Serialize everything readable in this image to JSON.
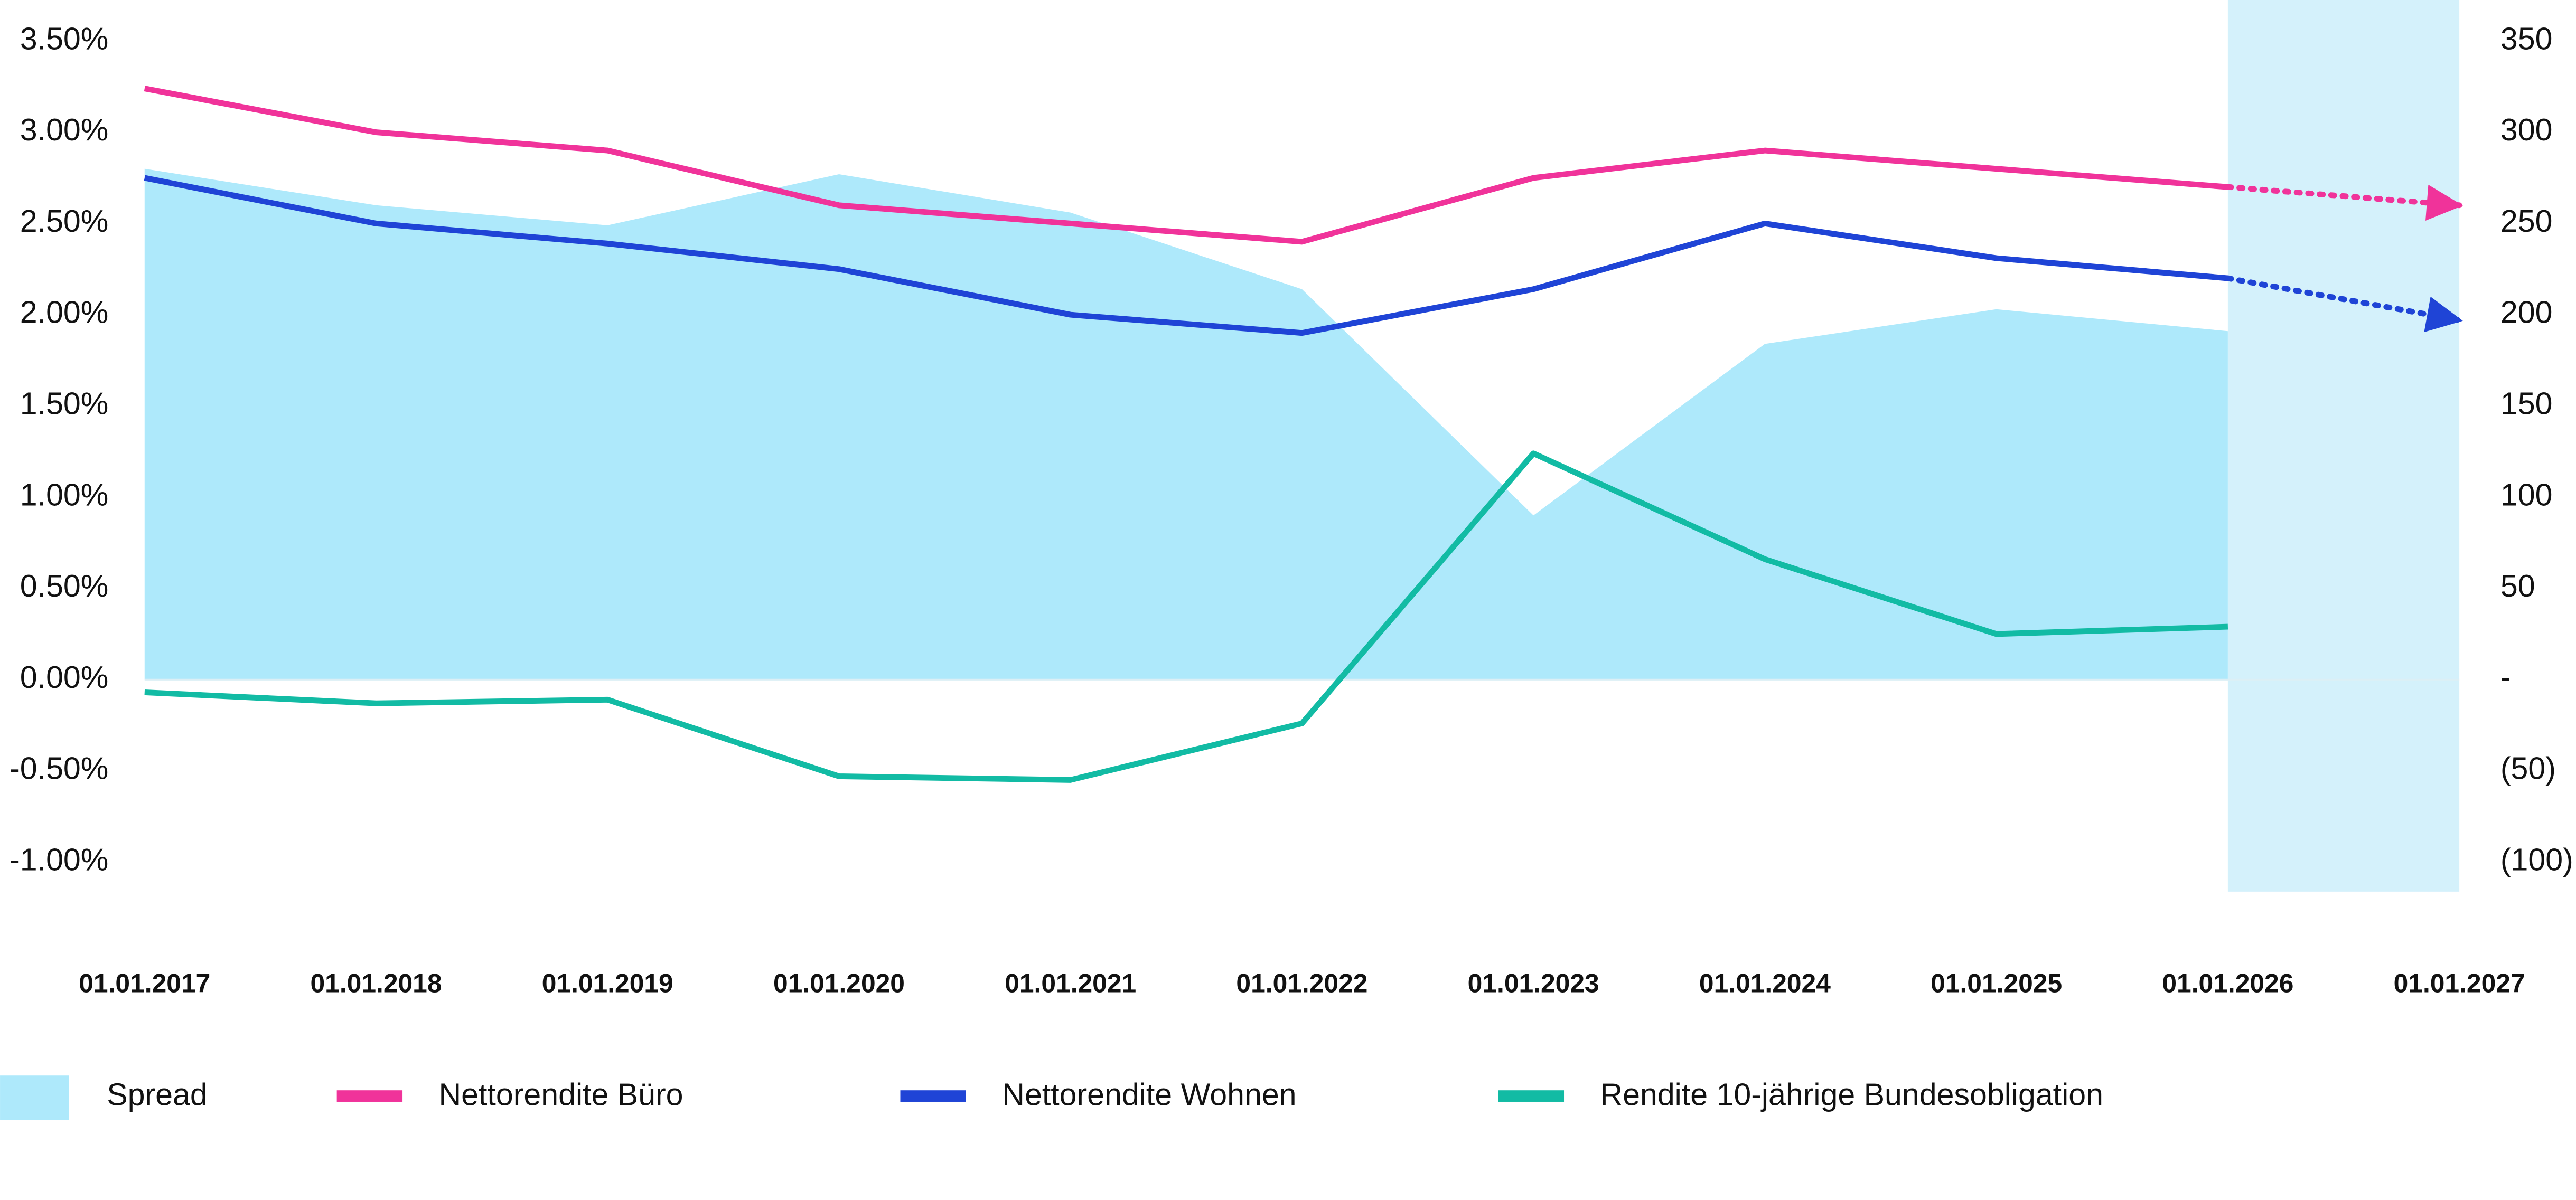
{
  "chart_data": {
    "type": "line",
    "categories": [
      "01.01.2017",
      "01.01.2018",
      "01.01.2019",
      "01.01.2020",
      "01.01.2021",
      "01.01.2022",
      "01.01.2023",
      "01.01.2024",
      "01.01.2025",
      "01.01.2026",
      "01.01.2027"
    ],
    "forecast_start": 9,
    "forecast_color": "#d4f1fb",
    "series": [
      {
        "name": "Spread",
        "color": "#aee9fb",
        "area": true,
        "axis": "y2",
        "values": [
          280,
          260,
          249,
          277,
          256,
          214,
          90,
          184,
          203,
          191,
          null
        ]
      },
      {
        "name": "Nettorendite Büro",
        "color": "#f0339a",
        "values": [
          3.24,
          3.0,
          2.9,
          2.6,
          2.5,
          2.4,
          2.75,
          2.9,
          2.8,
          2.7,
          2.6
        ]
      },
      {
        "name": "Nettorendite Wohnen",
        "color": "#1f44d6",
        "values": [
          2.75,
          2.5,
          2.39,
          2.25,
          2.0,
          1.9,
          2.14,
          2.5,
          2.31,
          2.2,
          1.97
        ]
      },
      {
        "name": "Rendite 10-jährige Bundesobligation",
        "color": "#12bba4",
        "values": [
          -0.07,
          -0.13,
          -0.11,
          -0.53,
          -0.55,
          -0.24,
          1.24,
          0.66,
          0.25,
          0.29,
          null
        ]
      }
    ],
    "ylim": [
      -1.0,
      3.5
    ],
    "yticks": [
      {
        "value": 3.5,
        "label": "3.50%"
      },
      {
        "value": 3.0,
        "label": "3.00%"
      },
      {
        "value": 2.5,
        "label": "2.50%"
      },
      {
        "value": 2.0,
        "label": "2.00%"
      },
      {
        "value": 1.5,
        "label": "1.50%"
      },
      {
        "value": 1.0,
        "label": "1.00%"
      },
      {
        "value": 0.5,
        "label": "0.50%"
      },
      {
        "value": 0,
        "label": "0.00%"
      },
      {
        "value": -0.5,
        "label": "-0.50%"
      },
      {
        "value": -1.0,
        "label": "-1.00%"
      }
    ],
    "y2lim": [
      -100,
      350
    ],
    "y2ticks": [
      350,
      300,
      250,
      200,
      150,
      100,
      50,
      {
        "value": 0,
        "label": "-"
      },
      {
        "value": -50,
        "label": "(50)"
      },
      {
        "value": -100,
        "label": "(100)"
      }
    ]
  }
}
